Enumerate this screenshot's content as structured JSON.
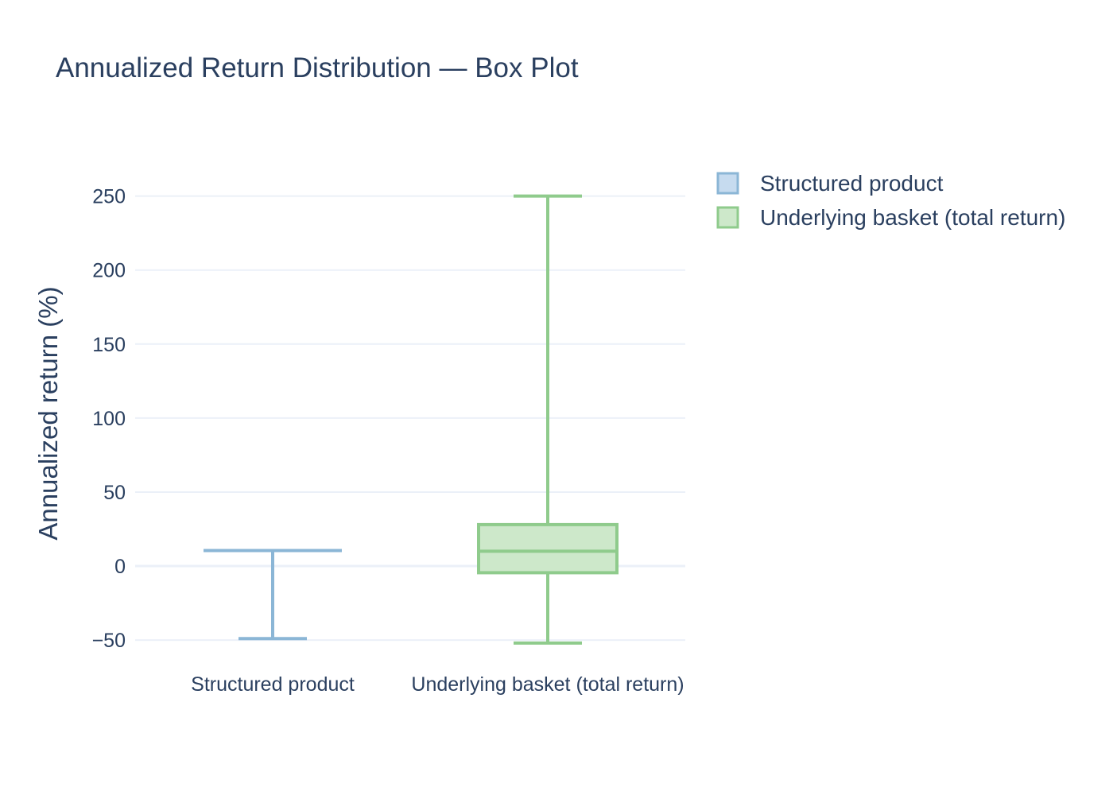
{
  "chart_data": {
    "type": "box",
    "title": "Annualized Return Distribution — Box Plot",
    "xlabel": "",
    "ylabel": "Annualized return (%)",
    "ylim": [
      -58,
      267
    ],
    "yticks": [
      -50,
      0,
      50,
      100,
      150,
      200,
      250
    ],
    "ytick_labels": [
      "−50",
      "0",
      "50",
      "100",
      "150",
      "200",
      "250"
    ],
    "grid": true,
    "legend_position": "top-right",
    "categories": [
      "Structured product",
      "Underlying basket (total return)"
    ],
    "series": [
      {
        "name": "Structured product",
        "color": "#8bb6d6",
        "fill": "#c6dbef",
        "min": -49,
        "q1": 10.5,
        "median": 10.5,
        "q3": 10.5,
        "max": 10.5
      },
      {
        "name": "Underlying basket (total return)",
        "color": "#8fcb8c",
        "fill": "#cde8ca",
        "min": -52,
        "q1": -4.5,
        "median": 10,
        "q3": 28,
        "max": 250
      }
    ]
  }
}
